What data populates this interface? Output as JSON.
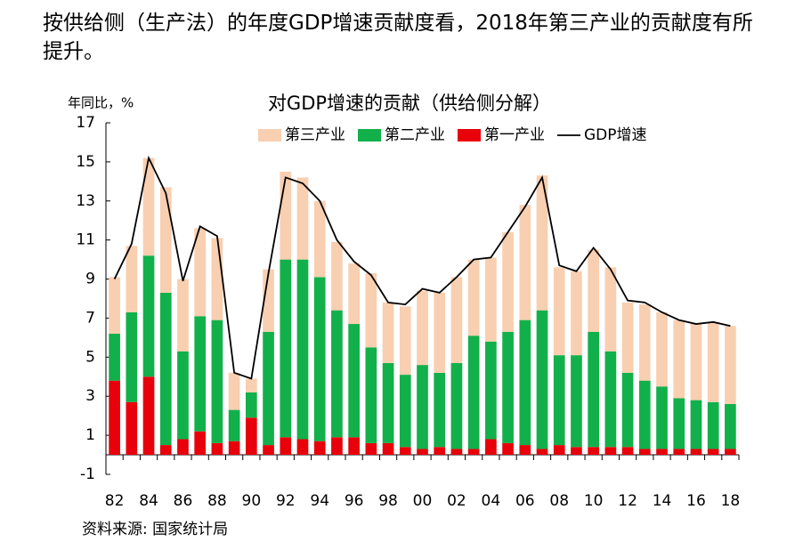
{
  "header": {
    "text": "按供给侧（生产法）的年度GDP增速贡献度看，2018年第三产业的贡献度有所提升。"
  },
  "chart_data": {
    "type": "bar",
    "stacked": true,
    "title": "对GDP增速的贡献（供给侧分解）",
    "y_label": "年同比，%",
    "source": "资料来源: 国家统计局",
    "categories": [
      "82",
      null,
      "84",
      null,
      "86",
      null,
      "88",
      null,
      "90",
      null,
      "92",
      null,
      "94",
      null,
      "96",
      null,
      "98",
      null,
      "00",
      null,
      "02",
      null,
      "04",
      null,
      "06",
      null,
      "08",
      null,
      "10",
      null,
      "12",
      null,
      "14",
      null,
      "16",
      null,
      "18"
    ],
    "series": [
      {
        "name": "第三产业",
        "type": "bar",
        "color": "#f8cfb0",
        "values": [
          2.9,
          3.4,
          5.0,
          5.4,
          3.7,
          4.5,
          4.2,
          1.9,
          0.7,
          3.2,
          4.5,
          4.2,
          3.9,
          3.5,
          3.1,
          3.8,
          3.1,
          3.5,
          3.8,
          4.1,
          4.4,
          3.9,
          4.3,
          5.1,
          5.9,
          6.9,
          4.5,
          4.3,
          4.2,
          4.3,
          3.6,
          3.9,
          3.8,
          4.0,
          3.9,
          4.1,
          4.0
        ]
      },
      {
        "name": "第二产业",
        "type": "bar",
        "color": "#12b04a",
        "values": [
          2.4,
          4.6,
          6.2,
          7.8,
          4.5,
          5.9,
          6.3,
          1.6,
          1.3,
          5.8,
          9.1,
          9.2,
          8.4,
          6.5,
          5.8,
          4.9,
          4.1,
          3.7,
          4.3,
          3.8,
          4.4,
          5.8,
          5.0,
          5.7,
          6.4,
          7.1,
          4.6,
          4.7,
          5.9,
          4.9,
          3.8,
          3.5,
          3.2,
          2.6,
          2.5,
          2.4,
          2.3
        ]
      },
      {
        "name": "第一产业",
        "type": "bar",
        "color": "#e8000b",
        "values": [
          3.8,
          2.7,
          4.0,
          0.5,
          0.8,
          1.2,
          0.6,
          0.7,
          1.9,
          0.5,
          0.9,
          0.8,
          0.7,
          0.9,
          0.9,
          0.6,
          0.6,
          0.4,
          0.3,
          0.4,
          0.3,
          0.3,
          0.8,
          0.6,
          0.5,
          0.3,
          0.5,
          0.4,
          0.4,
          0.4,
          0.4,
          0.3,
          0.3,
          0.3,
          0.3,
          0.3,
          0.3
        ]
      },
      {
        "name": "GDP增速",
        "type": "line",
        "color": "#000000",
        "values": [
          9.0,
          10.8,
          15.2,
          13.4,
          8.9,
          11.7,
          11.2,
          4.2,
          3.9,
          9.3,
          14.2,
          13.9,
          13.0,
          11.0,
          9.9,
          9.2,
          7.8,
          7.7,
          8.5,
          8.3,
          9.1,
          10.0,
          10.1,
          11.4,
          12.7,
          14.2,
          9.7,
          9.4,
          10.6,
          9.5,
          7.9,
          7.8,
          7.3,
          6.9,
          6.7,
          6.8,
          6.6
        ]
      }
    ],
    "ylim": [
      -1,
      17
    ],
    "yticks": [
      -1,
      1,
      3,
      5,
      7,
      9,
      11,
      13,
      15,
      17
    ],
    "grid": false
  }
}
